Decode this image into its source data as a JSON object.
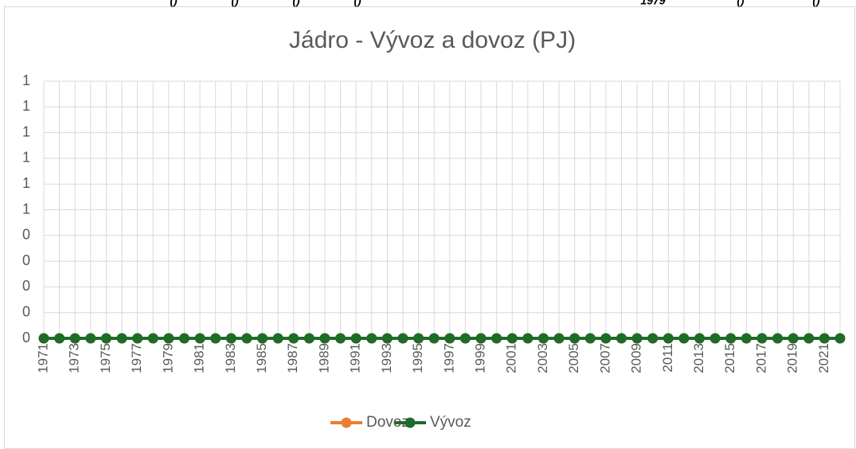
{
  "top_fragments": [
    "()",
    "()",
    "()",
    "()",
    "1979",
    "()",
    "()"
  ],
  "chart_data": {
    "type": "line",
    "title": "Jádro - Vývoz a dovoz (PJ)",
    "categories": [
      "1971",
      null,
      "1973",
      null,
      "1975",
      null,
      "1977",
      null,
      "1979",
      null,
      "1981",
      null,
      "1983",
      null,
      "1985",
      null,
      "1987",
      null,
      "1989",
      null,
      "1991",
      null,
      "1993",
      null,
      "1995",
      null,
      "1997",
      null,
      "1999",
      null,
      "2001",
      null,
      "2003",
      null,
      "2005",
      null,
      "2007",
      null,
      "2009",
      null,
      "2011",
      null,
      "2013",
      null,
      "2015",
      null,
      "2017",
      null,
      "2019",
      null,
      "2021",
      null
    ],
    "series": [
      {
        "name": "Dovoz",
        "color": "#ed7d31",
        "values": [
          0,
          0,
          0,
          0,
          0,
          0,
          0,
          0,
          0,
          0,
          0,
          0,
          0,
          0,
          0,
          0,
          0,
          0,
          0,
          0,
          0,
          0,
          0,
          0,
          0,
          0,
          0,
          0,
          0,
          0,
          0,
          0,
          0,
          0,
          0,
          0,
          0,
          0,
          0,
          0,
          0,
          0,
          0,
          0,
          0,
          0,
          0,
          0,
          0,
          0,
          0,
          0
        ]
      },
      {
        "name": "Vývoz",
        "color": "#1e6b2a",
        "values": [
          0,
          0,
          0,
          0,
          0,
          0,
          0,
          0,
          0,
          0,
          0,
          0,
          0,
          0,
          0,
          0,
          0,
          0,
          0,
          0,
          0,
          0,
          0,
          0,
          0,
          0,
          0,
          0,
          0,
          0,
          0,
          0,
          0,
          0,
          0,
          0,
          0,
          0,
          0,
          0,
          0,
          0,
          0,
          0,
          0,
          0,
          0,
          0,
          0,
          0,
          0,
          0
        ]
      }
    ],
    "ylim": [
      0,
      1
    ],
    "yticks": [
      0,
      {
        "value": 0.1,
        "label": "0"
      },
      {
        "value": 0.2,
        "label": "0"
      },
      {
        "value": 0.3,
        "label": "0"
      },
      {
        "value": 0.4,
        "label": "0"
      },
      {
        "value": 0.5,
        "label": "1"
      },
      {
        "value": 0.6,
        "label": "1"
      },
      {
        "value": 0.7,
        "label": "1"
      },
      {
        "value": 0.8,
        "label": "1"
      },
      {
        "value": 0.9,
        "label": "1"
      },
      1
    ],
    "grid": true,
    "legend": "bottom"
  }
}
